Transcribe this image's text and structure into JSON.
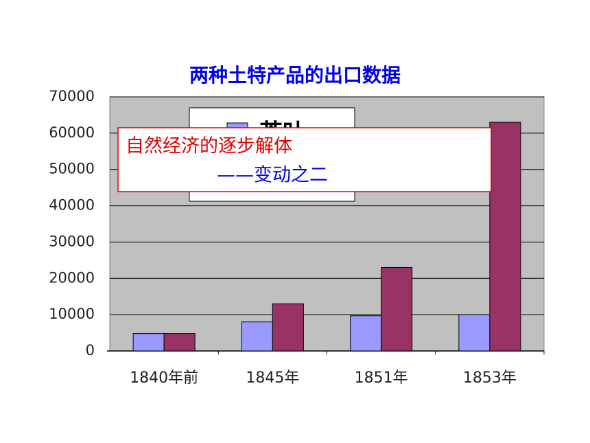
{
  "chart_data": {
    "type": "bar",
    "title": "两种土特产品的出口数据",
    "categories": [
      "1840年前",
      "1845年",
      "1851年",
      "1853年"
    ],
    "series": [
      {
        "name": "茶叶",
        "color": "#9999ff",
        "values": [
          4800,
          8000,
          9700,
          10000
        ]
      },
      {
        "color": "#993366",
        "values": [
          4800,
          13000,
          23000,
          63000
        ]
      }
    ],
    "ylim": [
      0,
      70000
    ],
    "yticks": [
      0,
      10000,
      20000,
      30000,
      40000,
      50000,
      60000,
      70000
    ],
    "grid": true,
    "plot_background": "#c0c0c0",
    "annotations": [
      "自然经济的逐步解体",
      "——变动之二"
    ]
  }
}
